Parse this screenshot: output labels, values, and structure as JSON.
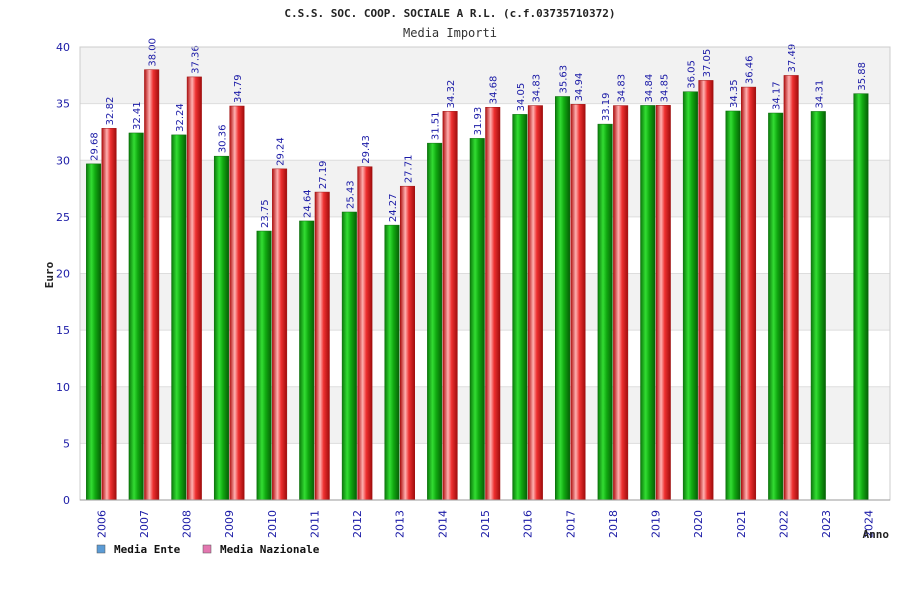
{
  "chart_data": {
    "type": "bar",
    "title": "C.S.S. SOC. COOP. SOCIALE A R.L. (c.f.03735710372)",
    "subtitle": "Media Importi",
    "ylabel": "Euro",
    "xlabel": "Anno",
    "ylim": [
      0,
      40
    ],
    "yticks": [
      0,
      5,
      10,
      15,
      20,
      25,
      30,
      35,
      40
    ],
    "grid": true,
    "legend_position": "bottom-left",
    "categories": [
      "2006",
      "2007",
      "2008",
      "2009",
      "2010",
      "2011",
      "2012",
      "2013",
      "2014",
      "2015",
      "2016",
      "2017",
      "2018",
      "2019",
      "2020",
      "2021",
      "2022",
      "2023",
      "2024"
    ],
    "series": [
      {
        "name": "Media Ente",
        "legend_color": "#5b9bd5",
        "bar_color": "#11aa11",
        "values": [
          29.68,
          32.41,
          32.24,
          30.36,
          23.75,
          24.64,
          25.43,
          24.27,
          31.51,
          31.93,
          34.05,
          35.63,
          33.19,
          34.84,
          36.05,
          34.35,
          34.17,
          34.31,
          35.88
        ],
        "labels": [
          "29.68",
          "32.41",
          "32.24",
          "30.36",
          "23.75",
          "24.64",
          "25.43",
          "24.27",
          "31.51",
          "31.93",
          "34.05",
          "35.63",
          "33.19",
          "34.84",
          "36.05",
          "34.35",
          "34.17",
          "34.31",
          "35.88"
        ]
      },
      {
        "name": "Media Nazionale",
        "legend_color": "#e377b0",
        "bar_color": "#ee2222",
        "values": [
          32.82,
          38.0,
          37.36,
          34.79,
          29.24,
          27.19,
          29.43,
          27.71,
          34.32,
          34.68,
          34.83,
          34.94,
          34.83,
          34.85,
          37.05,
          36.46,
          37.49,
          null,
          null
        ],
        "labels": [
          "32.82",
          "38.00",
          "37.36",
          "34.79",
          "29.24",
          "27.19",
          "29.43",
          "27.71",
          "34.32",
          "34.68",
          "34.83",
          "34.94",
          "34.83",
          "34.85",
          "37.05",
          "36.46",
          "37.49",
          null,
          null
        ]
      }
    ]
  }
}
